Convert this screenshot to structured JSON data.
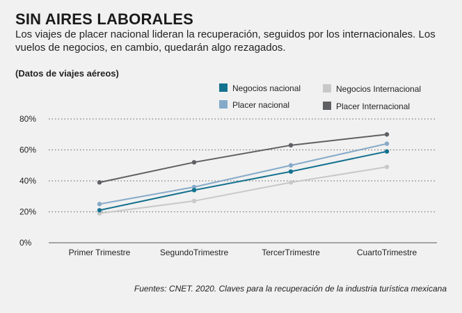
{
  "header": {
    "title": "SIN AIRES LABORALES",
    "subtitle": "Los viajes de placer nacional lideran la recuperación, seguidos por los internacionales. Los vuelos de negocios, en cambio, quedarán algo rezagados.",
    "unit_note": "(Datos de viajes aéreos)"
  },
  "source": "Fuentes: CNET. 2020. Claves para la recuperación de la industria turística mexicana",
  "chart_data": {
    "type": "line",
    "title": "SIN AIRES LABORALES",
    "xlabel": "",
    "ylabel": "",
    "categories": [
      "Primer Trimestre",
      "SegundoTrimestre",
      "TercerTrimestre",
      "CuartoTrimestre"
    ],
    "ylim": [
      0,
      80
    ],
    "yticks": [
      0,
      20,
      40,
      60,
      80
    ],
    "ytick_labels": [
      "0%",
      "20%",
      "40%",
      "60%",
      "80%"
    ],
    "grid": "horizontal dotted",
    "legend_position": "top-right",
    "series": [
      {
        "name": "Negocios nacional",
        "color": "#14728f",
        "values": [
          21,
          34,
          46,
          59
        ]
      },
      {
        "name": "Placer nacional",
        "color": "#85aac9",
        "values": [
          25,
          36,
          50,
          64
        ]
      },
      {
        "name": "Negocios Internacional",
        "color": "#c8c8c8",
        "values": [
          19,
          27,
          39,
          49
        ]
      },
      {
        "name": "Placer Internacional",
        "color": "#5f6063",
        "values": [
          39,
          52,
          63,
          70
        ]
      }
    ]
  }
}
